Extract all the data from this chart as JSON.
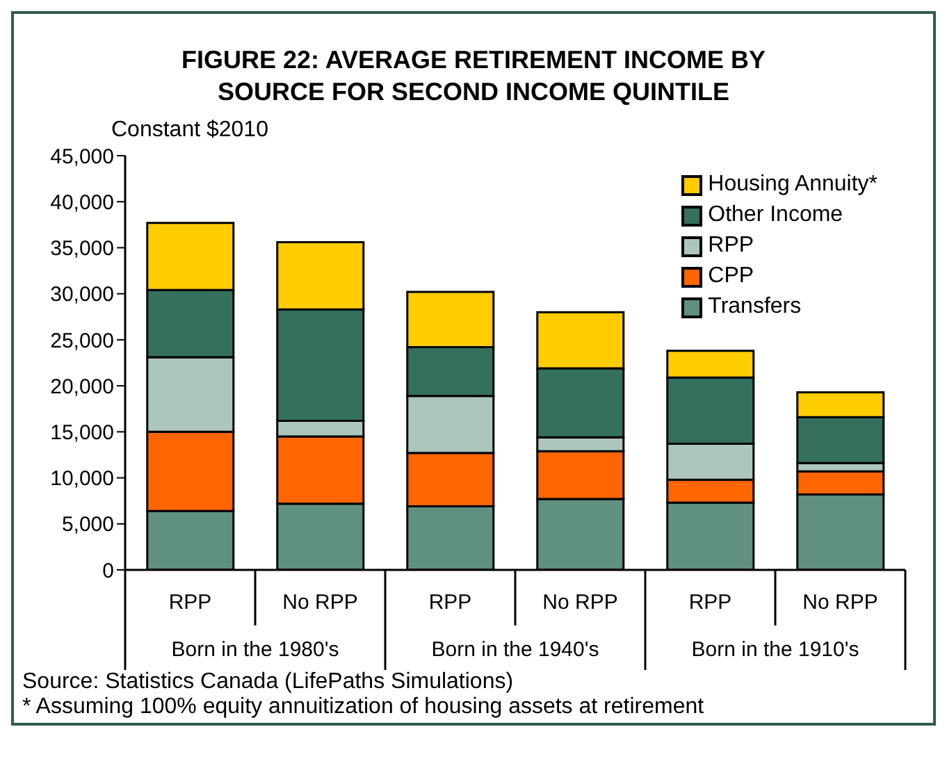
{
  "chart_data": {
    "type": "bar",
    "title": "FIGURE 22: AVERAGE RETIREMENT INCOME BY SOURCE FOR SECOND INCOME QUINTILE",
    "ylabel": "Constant $2010",
    "categories": [
      "RPP",
      "No RPP",
      "RPP",
      "No RPP",
      "RPP",
      "No RPP"
    ],
    "annotations": [
      "Born in the 1980's",
      "Born in the 1940's",
      "Born in the 1910's",
      "Source: Statistics Canada (LifePaths Simulations)",
      "* Assuming 100% equity annuitization of housing assets at retirement"
    ],
    "stacked": true,
    "grid": false,
    "legend": "top right",
    "ylim": [
      0,
      45000
    ],
    "yticks": [
      0,
      {
        "value": 5000,
        "label": "5,000"
      },
      {
        "value": 10000,
        "label": "10,000"
      },
      {
        "value": 15000,
        "label": "15,000"
      },
      {
        "value": 20000,
        "label": "20,000"
      },
      {
        "value": 25000,
        "label": "25,000"
      },
      {
        "value": 30000,
        "label": "30,000"
      },
      {
        "value": 35000,
        "label": "35,000"
      },
      {
        "value": 40000,
        "label": "40,000"
      },
      {
        "value": 45000,
        "label": "45,000"
      }
    ],
    "series": [
      {
        "name": "Transfers",
        "color": "#5f9080",
        "values": [
          6400,
          7200,
          6900,
          7700,
          7300,
          8200
        ]
      },
      {
        "name": "CPP",
        "color": "#ff6600",
        "values": [
          8600,
          7300,
          5800,
          5200,
          2500,
          2500
        ]
      },
      {
        "name": "RPP",
        "color": "#adc6bb",
        "values": [
          8100,
          1700,
          6200,
          1500,
          3900,
          900
        ]
      },
      {
        "name": "Other Income",
        "color": "#35705c",
        "values": [
          7300,
          12100,
          5300,
          7500,
          7200,
          5000
        ]
      },
      {
        "name": "Housing Annuity*",
        "color": "#ffcc00",
        "values": [
          7300,
          7300,
          6000,
          6100,
          2900,
          2700
        ]
      }
    ]
  }
}
